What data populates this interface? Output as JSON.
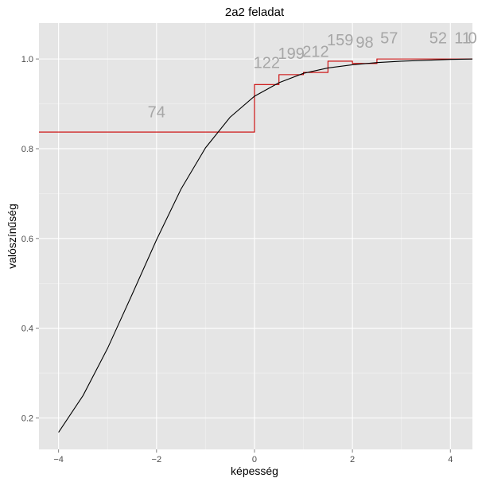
{
  "chart_data": {
    "type": "line",
    "title": "2a2 feladat",
    "xlabel": "képesség",
    "ylabel": "valószínűség",
    "xlim": [
      -4.4,
      4.45
    ],
    "ylim": [
      0.13,
      1.08
    ],
    "x_ticks": [
      -4,
      -2,
      0,
      2,
      4
    ],
    "x_tick_labels": [
      "−4",
      "−2",
      "0",
      "2",
      "4"
    ],
    "y_ticks": [
      0.2,
      0.4,
      0.6,
      0.8,
      1.0
    ],
    "y_tick_labels": [
      "0.2",
      "0.4",
      "0.6",
      "0.8",
      "1.0"
    ],
    "grid": true,
    "legend": "none",
    "colors": {
      "panel": "#e5e5e5",
      "grid_major": "#ffffff",
      "curve": "#000000",
      "step": "#cc0000",
      "count_label": "#a6a6a6"
    },
    "series": [
      {
        "type": "line",
        "points": [
          {
            "x": -4,
            "y": 0.168
          },
          {
            "x": -3.5,
            "y": 0.25
          },
          {
            "x": -3,
            "y": 0.355
          },
          {
            "x": -2.5,
            "y": 0.475
          },
          {
            "x": -2,
            "y": 0.597
          },
          {
            "x": -1.5,
            "y": 0.71
          },
          {
            "x": -1,
            "y": 0.802
          },
          {
            "x": -0.5,
            "y": 0.87
          },
          {
            "x": 0,
            "y": 0.917
          },
          {
            "x": 0.5,
            "y": 0.947
          },
          {
            "x": 1,
            "y": 0.968
          },
          {
            "x": 1.5,
            "y": 0.98
          },
          {
            "x": 2,
            "y": 0.987
          },
          {
            "x": 2.5,
            "y": 0.992
          },
          {
            "x": 3,
            "y": 0.995
          },
          {
            "x": 3.5,
            "y": 0.997
          },
          {
            "x": 4,
            "y": 0.999
          },
          {
            "x": 4.45,
            "y": 1.0
          }
        ]
      },
      {
        "type": "step",
        "steps": [
          {
            "x_start": -4.4,
            "x_end": 0,
            "y": 0.837,
            "n": "74"
          },
          {
            "x_start": 0,
            "x_end": 0.5,
            "y": 0.943,
            "n": "122"
          },
          {
            "x_start": 0.5,
            "x_end": 1.0,
            "y": 0.965,
            "n": "199"
          },
          {
            "x_start": 1.0,
            "x_end": 1.5,
            "y": 0.97,
            "n": "212"
          },
          {
            "x_start": 1.5,
            "x_end": 2.0,
            "y": 0.995,
            "n": "159"
          },
          {
            "x_start": 2.0,
            "x_end": 2.5,
            "y": 0.99,
            "n": "98"
          },
          {
            "x_start": 2.5,
            "x_end": 3.5,
            "y": 1.0,
            "n": "57"
          },
          {
            "x_start": 3.5,
            "x_end": 4.0,
            "y": 1.0,
            "n": "52"
          },
          {
            "x_start": 4.0,
            "x_end": 4.45,
            "y": 1.0,
            "n": "11"
          },
          {
            "x_start": 4.45,
            "x_end": 4.45,
            "y": 1.0,
            "n": "0"
          }
        ]
      }
    ],
    "count_labels": [
      {
        "text": "74",
        "x": -2.0,
        "y": 0.87
      },
      {
        "text": "122",
        "x": 0.25,
        "y": 0.98
      },
      {
        "text": "199",
        "x": 0.75,
        "y": 1.0
      },
      {
        "text": "212",
        "x": 1.25,
        "y": 1.005
      },
      {
        "text": "159",
        "x": 1.75,
        "y": 1.03
      },
      {
        "text": "98",
        "x": 2.25,
        "y": 1.025
      },
      {
        "text": "57",
        "x": 2.75,
        "y": 1.035
      },
      {
        "text": "52",
        "x": 3.75,
        "y": 1.035
      },
      {
        "text": "11",
        "x": 4.25,
        "y": 1.035
      },
      {
        "text": "0",
        "x": 4.45,
        "y": 1.035
      }
    ]
  }
}
